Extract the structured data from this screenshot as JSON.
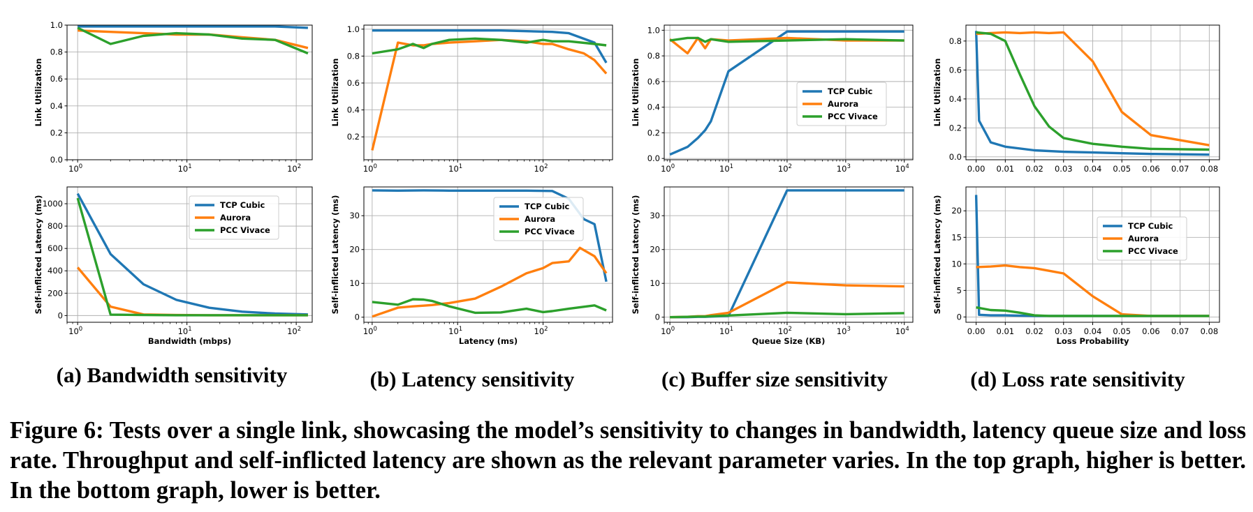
{
  "colors": {
    "tcp": "#1f77b4",
    "aurora": "#ff7f0e",
    "vivace": "#2ca02c",
    "grid": "#b0b0b0"
  },
  "subcaptions": [
    "(a) Bandwidth sensitivity",
    "(b) Latency sensitivity",
    "(c) Buffer size sensitivity",
    "(d) Loss rate sensitivity"
  ],
  "caption": "Figure 6: Tests over a single link, showcasing the model’s sensitivity to changes in bandwidth, latency queue size and loss rate. Throughput and self-inflicted latency are shown as the relevant parameter varies. In the top graph, higher is better. In the bottom graph, lower is better.",
  "chart_data": [
    {
      "id": "a-top",
      "type": "line",
      "xscale": "log",
      "xlim": [
        0.8,
        140
      ],
      "ylim": [
        0,
        1.0
      ],
      "yticks": [
        0.0,
        0.2,
        0.4,
        0.6,
        0.8,
        1.0
      ],
      "ytick_labels": [
        "0.0",
        "0.2",
        "0.4",
        "0.6",
        "0.8",
        "1.0"
      ],
      "xticks": [
        1,
        10,
        100
      ],
      "xtick_labels": [
        "10^0",
        "10^1",
        "10^2"
      ],
      "xlabel": "",
      "ylabel": "Link Utilization",
      "legend": null,
      "series": [
        {
          "name": "TCP Cubic",
          "x": [
            1,
            2,
            4,
            8,
            16,
            32,
            64,
            128
          ],
          "y": [
            0.99,
            0.99,
            0.99,
            0.99,
            0.99,
            0.99,
            0.99,
            0.98
          ]
        },
        {
          "name": "Aurora",
          "x": [
            1,
            2,
            4,
            8,
            16,
            32,
            64,
            128
          ],
          "y": [
            0.96,
            0.95,
            0.94,
            0.93,
            0.93,
            0.91,
            0.89,
            0.83
          ]
        },
        {
          "name": "PCC Vivace",
          "x": [
            1,
            2,
            4,
            8,
            16,
            32,
            64,
            128
          ],
          "y": [
            0.98,
            0.86,
            0.92,
            0.94,
            0.93,
            0.9,
            0.89,
            0.79
          ]
        }
      ]
    },
    {
      "id": "b-top",
      "type": "line",
      "xscale": "log",
      "xlim": [
        0.8,
        650
      ],
      "ylim": [
        0.03,
        1.03
      ],
      "yticks": [
        0.2,
        0.4,
        0.6,
        0.8,
        1.0
      ],
      "ytick_labels": [
        "0.2",
        "0.4",
        "0.6",
        "0.8",
        "1.0"
      ],
      "xticks": [
        1,
        10,
        100
      ],
      "xtick_labels": [
        "10^0",
        "10^1",
        "10^2"
      ],
      "xlabel": "",
      "ylabel": "Link Utilization",
      "legend": null,
      "series": [
        {
          "name": "TCP Cubic",
          "x": [
            1,
            2,
            4,
            8,
            16,
            32,
            64,
            128,
            200,
            400,
            550
          ],
          "y": [
            0.99,
            0.99,
            0.99,
            0.99,
            0.99,
            0.99,
            0.985,
            0.98,
            0.97,
            0.9,
            0.75
          ]
        },
        {
          "name": "Aurora",
          "x": [
            1,
            2,
            3,
            4,
            5,
            8,
            16,
            32,
            64,
            100,
            128,
            200,
            300,
            400,
            550
          ],
          "y": [
            0.1,
            0.9,
            0.88,
            0.88,
            0.89,
            0.9,
            0.91,
            0.92,
            0.91,
            0.89,
            0.89,
            0.85,
            0.82,
            0.77,
            0.67
          ]
        },
        {
          "name": "PCC Vivace",
          "x": [
            1,
            2,
            3,
            4,
            5,
            8,
            16,
            32,
            64,
            100,
            128,
            200,
            400,
            550
          ],
          "y": [
            0.82,
            0.85,
            0.89,
            0.86,
            0.89,
            0.92,
            0.93,
            0.92,
            0.9,
            0.92,
            0.91,
            0.91,
            0.89,
            0.88
          ]
        }
      ]
    },
    {
      "id": "c-top",
      "type": "line",
      "xscale": "log",
      "xlim": [
        0.8,
        14000
      ],
      "ylim": [
        -0.01,
        1.04
      ],
      "yticks": [
        0.0,
        0.2,
        0.4,
        0.6,
        0.8,
        1.0
      ],
      "ytick_labels": [
        "0.0",
        "0.2",
        "0.4",
        "0.6",
        "0.8",
        "1.0"
      ],
      "xticks": [
        1,
        10,
        100,
        1000,
        10000
      ],
      "xtick_labels": [
        "10^0",
        "10^1",
        "10^2",
        "10^3",
        "10^4"
      ],
      "xlabel": "",
      "ylabel": "Link Utilization",
      "legend": "center-right",
      "series": [
        {
          "name": "TCP Cubic",
          "x": [
            1,
            2,
            3,
            4,
            5,
            10,
            100,
            1000,
            10000
          ],
          "y": [
            0.03,
            0.09,
            0.16,
            0.22,
            0.29,
            0.68,
            0.99,
            0.99,
            0.99
          ]
        },
        {
          "name": "Aurora",
          "x": [
            1,
            2,
            3,
            4,
            5,
            10,
            100,
            1000,
            10000
          ],
          "y": [
            0.93,
            0.82,
            0.94,
            0.86,
            0.93,
            0.92,
            0.94,
            0.92,
            0.92
          ]
        },
        {
          "name": "PCC Vivace",
          "x": [
            1,
            2,
            3,
            4,
            5,
            10,
            100,
            1000,
            10000
          ],
          "y": [
            0.92,
            0.94,
            0.94,
            0.91,
            0.93,
            0.91,
            0.92,
            0.93,
            0.92
          ]
        }
      ]
    },
    {
      "id": "d-top",
      "type": "line",
      "xscale": "linear",
      "xlim": [
        -0.0035,
        0.0835
      ],
      "ylim": [
        -0.02,
        0.91
      ],
      "yticks": [
        0.0,
        0.2,
        0.4,
        0.6,
        0.8
      ],
      "ytick_labels": [
        "0.0",
        "0.2",
        "0.4",
        "0.6",
        "0.8"
      ],
      "xticks": [
        0.0,
        0.01,
        0.02,
        0.03,
        0.04,
        0.05,
        0.06,
        0.07,
        0.08
      ],
      "xtick_labels": [
        "0.00",
        "0.01",
        "0.02",
        "0.03",
        "0.04",
        "0.05",
        "0.06",
        "0.07",
        "0.08"
      ],
      "xlabel": "",
      "ylabel": "Link Utilization",
      "legend": null,
      "series": [
        {
          "name": "TCP Cubic",
          "x": [
            0.0,
            0.001,
            0.005,
            0.01,
            0.02,
            0.03,
            0.04,
            0.05,
            0.06,
            0.08
          ],
          "y": [
            0.87,
            0.25,
            0.1,
            0.07,
            0.045,
            0.035,
            0.03,
            0.025,
            0.02,
            0.015
          ]
        },
        {
          "name": "Aurora",
          "x": [
            0.0,
            0.005,
            0.01,
            0.015,
            0.02,
            0.025,
            0.03,
            0.04,
            0.05,
            0.06,
            0.08
          ],
          "y": [
            0.85,
            0.855,
            0.86,
            0.855,
            0.86,
            0.855,
            0.86,
            0.66,
            0.31,
            0.15,
            0.08
          ]
        },
        {
          "name": "PCC Vivace",
          "x": [
            0.0,
            0.005,
            0.01,
            0.015,
            0.02,
            0.025,
            0.03,
            0.04,
            0.05,
            0.06,
            0.08
          ],
          "y": [
            0.86,
            0.85,
            0.8,
            0.57,
            0.35,
            0.21,
            0.13,
            0.09,
            0.07,
            0.055,
            0.05
          ]
        }
      ]
    },
    {
      "id": "a-bottom",
      "type": "line",
      "xscale": "log",
      "xlim": [
        0.8,
        140
      ],
      "ylim": [
        -60,
        1150
      ],
      "yticks": [
        0,
        200,
        400,
        600,
        800,
        1000
      ],
      "ytick_labels": [
        "0",
        "200",
        "400",
        "600",
        "800",
        "1000"
      ],
      "xticks": [
        1,
        10,
        100
      ],
      "xtick_labels": [
        "10^0",
        "10^1",
        "10^2"
      ],
      "xlabel": "Bandwidth (mbps)",
      "ylabel": "Self-inflicted Latency (ms)",
      "legend": "top-right",
      "series": [
        {
          "name": "TCP Cubic",
          "x": [
            1,
            2,
            4,
            8,
            16,
            32,
            64,
            128
          ],
          "y": [
            1090,
            550,
            280,
            140,
            70,
            35,
            18,
            10
          ]
        },
        {
          "name": "Aurora",
          "x": [
            1,
            2,
            4,
            8,
            16,
            32,
            64,
            128
          ],
          "y": [
            430,
            80,
            10,
            5,
            3,
            3,
            3,
            3
          ]
        },
        {
          "name": "PCC Vivace",
          "x": [
            1,
            2,
            4,
            8,
            16,
            32,
            64,
            128
          ],
          "y": [
            1050,
            8,
            5,
            3,
            3,
            3,
            3,
            3
          ]
        }
      ]
    },
    {
      "id": "b-bottom",
      "type": "line",
      "xscale": "log",
      "xlim": [
        0.8,
        650
      ],
      "ylim": [
        -1.5,
        38.5
      ],
      "yticks": [
        0,
        10,
        20,
        30
      ],
      "ytick_labels": [
        "0",
        "10",
        "20",
        "30"
      ],
      "xticks": [
        1,
        10,
        100
      ],
      "xtick_labels": [
        "10^0",
        "10^1",
        "10^2"
      ],
      "xlabel": "Latency (ms)",
      "ylabel": "Self-inflicted Latency (ms)",
      "legend": "top-right",
      "series": [
        {
          "name": "TCP Cubic",
          "x": [
            1,
            2,
            4,
            8,
            16,
            32,
            64,
            128,
            200,
            300,
            400,
            550
          ],
          "y": [
            37.5,
            37.4,
            37.5,
            37.4,
            37.4,
            37.4,
            37.4,
            37.3,
            35.0,
            29.0,
            27.5,
            10.5
          ]
        },
        {
          "name": "Aurora",
          "x": [
            1,
            2,
            3,
            4,
            5,
            8,
            16,
            32,
            64,
            100,
            128,
            200,
            270,
            400,
            550
          ],
          "y": [
            0.2,
            2.8,
            3.2,
            3.4,
            3.6,
            4.2,
            5.5,
            9.0,
            13.0,
            14.5,
            16.0,
            16.5,
            20.5,
            18.0,
            13.0
          ]
        },
        {
          "name": "PCC Vivace",
          "x": [
            1,
            2,
            3,
            4,
            5,
            8,
            16,
            32,
            64,
            100,
            128,
            200,
            400,
            550
          ],
          "y": [
            4.5,
            3.7,
            5.3,
            5.2,
            4.8,
            3.2,
            1.3,
            1.4,
            2.5,
            1.5,
            1.8,
            2.5,
            3.5,
            2.0
          ]
        }
      ]
    },
    {
      "id": "c-bottom",
      "type": "line",
      "xscale": "log",
      "xlim": [
        0.8,
        14000
      ],
      "ylim": [
        -1.5,
        38.5
      ],
      "yticks": [
        0,
        10,
        20,
        30
      ],
      "ytick_labels": [
        "0",
        "10",
        "20",
        "30"
      ],
      "xticks": [
        1,
        10,
        100,
        1000,
        10000
      ],
      "xtick_labels": [
        "10^0",
        "10^1",
        "10^2",
        "10^3",
        "10^4"
      ],
      "xlabel": "Queue Size (KB)",
      "ylabel": "Self-inflicted Latency (ms)",
      "legend": null,
      "series": [
        {
          "name": "TCP Cubic",
          "x": [
            1,
            2,
            3,
            4,
            5,
            10,
            100,
            1000,
            10000
          ],
          "y": [
            0.0,
            0.0,
            0.1,
            0.1,
            0.2,
            0.4,
            37.5,
            37.5,
            37.5
          ]
        },
        {
          "name": "Aurora",
          "x": [
            1,
            2,
            3,
            4,
            5,
            10,
            100,
            1000,
            10000
          ],
          "y": [
            0.0,
            0.1,
            0.3,
            0.3,
            0.6,
            1.3,
            10.3,
            9.4,
            9.1
          ]
        },
        {
          "name": "PCC Vivace",
          "x": [
            1,
            2,
            3,
            4,
            5,
            10,
            100,
            1000,
            10000
          ],
          "y": [
            0.0,
            0.1,
            0.2,
            0.2,
            0.3,
            0.5,
            1.3,
            0.9,
            1.2
          ]
        }
      ]
    },
    {
      "id": "d-bottom",
      "type": "line",
      "xscale": "linear",
      "xlim": [
        -0.0035,
        0.0835
      ],
      "ylim": [
        -1.0,
        24.5
      ],
      "yticks": [
        0,
        5,
        10,
        15,
        20
      ],
      "ytick_labels": [
        "0",
        "5",
        "10",
        "15",
        "20"
      ],
      "xticks": [
        0.0,
        0.01,
        0.02,
        0.03,
        0.04,
        0.05,
        0.06,
        0.07,
        0.08
      ],
      "xtick_labels": [
        "0.00",
        "0.01",
        "0.02",
        "0.03",
        "0.04",
        "0.05",
        "0.06",
        "0.07",
        "0.08"
      ],
      "xlabel": "Loss Probability",
      "ylabel": "Self-inflicted Latency (ms)",
      "legend": "center-right",
      "series": [
        {
          "name": "TCP Cubic",
          "x": [
            0.0,
            0.001,
            0.005,
            0.01,
            0.02,
            0.03,
            0.04,
            0.05,
            0.06,
            0.08
          ],
          "y": [
            23.0,
            0.4,
            0.3,
            0.3,
            0.2,
            0.2,
            0.2,
            0.2,
            0.2,
            0.2
          ]
        },
        {
          "name": "Aurora",
          "x": [
            0.0,
            0.005,
            0.01,
            0.015,
            0.02,
            0.025,
            0.03,
            0.04,
            0.05,
            0.06,
            0.08
          ],
          "y": [
            9.4,
            9.5,
            9.7,
            9.4,
            9.2,
            8.7,
            8.2,
            3.9,
            0.5,
            0.2,
            0.2
          ]
        },
        {
          "name": "PCC Vivace",
          "x": [
            0.0,
            0.005,
            0.01,
            0.015,
            0.02,
            0.025,
            0.03,
            0.04,
            0.05,
            0.06,
            0.08
          ],
          "y": [
            1.8,
            1.3,
            1.2,
            0.8,
            0.3,
            0.2,
            0.2,
            0.2,
            0.2,
            0.2,
            0.2
          ]
        }
      ]
    }
  ]
}
